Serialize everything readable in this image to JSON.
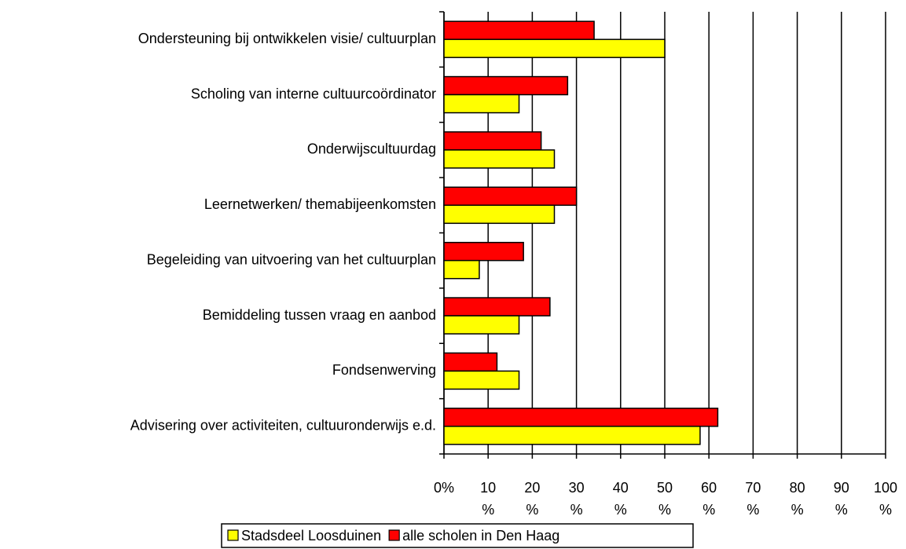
{
  "chart_data": {
    "type": "bar",
    "orientation": "horizontal",
    "categories": [
      "Ondersteuning bij ontwikkelen visie/ cultuurplan",
      "Scholing van interne cultuurcoördinator",
      "Onderwijscultuurdag",
      "Leernetwerken/ themabijeenkomsten",
      "Begeleiding van uitvoering van het cultuurplan",
      "Bemiddeling tussen vraag en aanbod",
      "Fondsenwerving",
      "Advisering over activiteiten, cultuuronderwijs e.d."
    ],
    "series": [
      {
        "name": "Stadsdeel Loosduinen",
        "color": "#ffff00",
        "values": [
          50,
          17,
          25,
          25,
          8,
          17,
          17,
          58
        ]
      },
      {
        "name": "alle scholen in Den Haag",
        "color": "#ff0000",
        "values": [
          34,
          28,
          22,
          30,
          18,
          24,
          12,
          62
        ]
      }
    ],
    "xlim": [
      0,
      100
    ],
    "xticks": [
      {
        "value": 0,
        "label": "0%"
      },
      {
        "value": 10,
        "label": "10 %"
      },
      {
        "value": 20,
        "label": "20 %"
      },
      {
        "value": 30,
        "label": "30 %"
      },
      {
        "value": 40,
        "label": "40 %"
      },
      {
        "value": 50,
        "label": "50 %"
      },
      {
        "value": 60,
        "label": "60 %"
      },
      {
        "value": 70,
        "label": "70 %"
      },
      {
        "value": 80,
        "label": "80 %"
      },
      {
        "value": 90,
        "label": "90 %"
      },
      {
        "value": 100,
        "label": "100 %"
      }
    ],
    "grid": true,
    "legend": "bottom"
  }
}
